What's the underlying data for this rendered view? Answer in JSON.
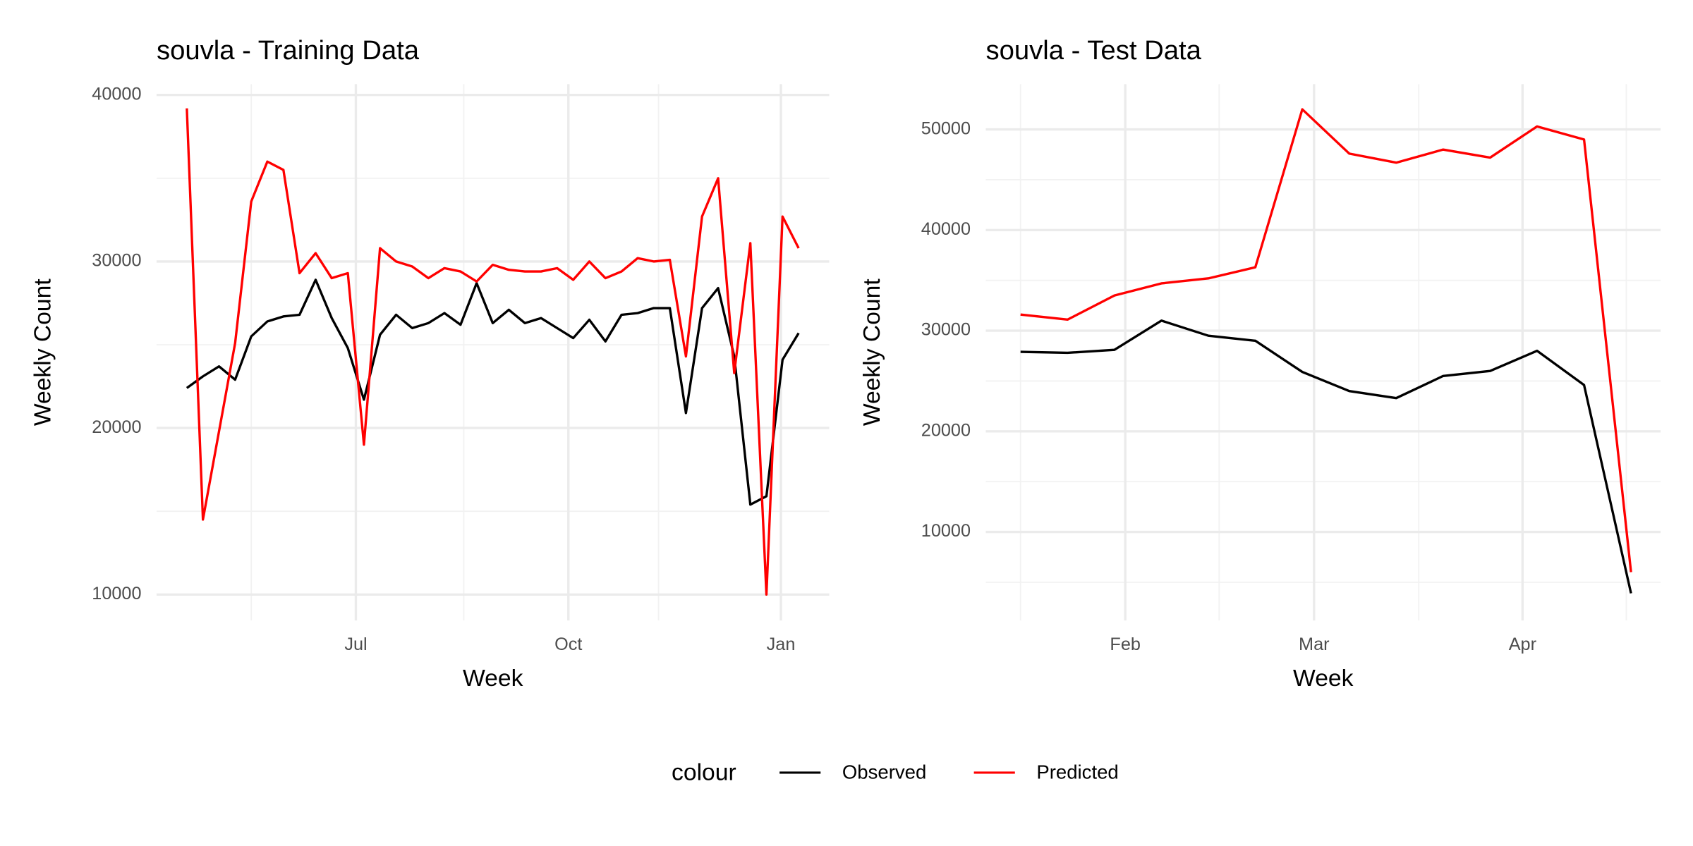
{
  "chart_data": [
    {
      "type": "line",
      "title": "souvla - Training Data",
      "xlabel": "Week",
      "ylabel": "Weekly Count",
      "x": [
        1,
        2,
        3,
        4,
        5,
        6,
        7,
        8,
        9,
        10,
        11,
        12,
        13,
        14,
        15,
        16,
        17,
        18,
        19,
        20,
        21,
        22,
        23,
        24,
        25,
        26,
        27,
        28,
        29,
        30,
        31,
        32,
        33,
        34,
        35,
        36,
        37,
        38,
        39
      ],
      "series": [
        {
          "name": "Observed",
          "color": "#000000",
          "values": [
            22400,
            23100,
            23700,
            22900,
            25500,
            26400,
            26700,
            26800,
            28900,
            26600,
            24800,
            21700,
            25600,
            26800,
            26000,
            26300,
            26900,
            26200,
            28700,
            26300,
            27100,
            26300,
            26600,
            26000,
            25400,
            26500,
            25200,
            26800,
            26900,
            27200,
            27200,
            20900,
            27200,
            28400,
            24300,
            15400,
            15900,
            24100,
            25700
          ]
        },
        {
          "name": "Predicted",
          "color": "#ff0000",
          "values": [
            39200,
            14500,
            19800,
            25100,
            33600,
            36000,
            35500,
            29300,
            30500,
            29000,
            29300,
            19000,
            30800,
            30000,
            29700,
            29000,
            29600,
            29400,
            28800,
            29800,
            29500,
            29400,
            29400,
            29600,
            28900,
            30000,
            29000,
            29400,
            30200,
            30000,
            30100,
            24300,
            32700,
            35000,
            23300,
            31100,
            10000,
            32700,
            30800
          ]
        }
      ],
      "xlim": [
        -0.88,
        40.9
      ],
      "xticks": [
        {
          "value": 11.5,
          "label": "Jul"
        },
        {
          "value": 24.7,
          "label": "Oct"
        },
        {
          "value": 37.9,
          "label": "Jan"
        }
      ],
      "xminorticks": [
        5.0,
        18.2,
        30.3
      ],
      "ylim": [
        8440,
        40650
      ],
      "yticks": [
        10000,
        20000,
        30000,
        40000
      ],
      "yminorticks": [
        15000,
        25000,
        35000
      ],
      "grid": true
    },
    {
      "type": "line",
      "title": "souvla - Test Data",
      "xlabel": "Week",
      "ylabel": "Weekly Count",
      "x": [
        1,
        2,
        3,
        4,
        5,
        6,
        7,
        8,
        9,
        10,
        11,
        12,
        13,
        14
      ],
      "series": [
        {
          "name": "Observed",
          "color": "#000000",
          "values": [
            27900,
            27800,
            28100,
            31000,
            29500,
            29000,
            25900,
            24000,
            23300,
            25500,
            26000,
            28000,
            24600,
            3900
          ]
        },
        {
          "name": "Predicted",
          "color": "#ff0000",
          "values": [
            31600,
            31100,
            33500,
            34700,
            35200,
            36300,
            52000,
            47600,
            46700,
            48000,
            47200,
            50300,
            49000,
            6000
          ]
        }
      ],
      "xlim": [
        0.26,
        14.63
      ],
      "xticks": [
        {
          "value": 3.23,
          "label": "Feb"
        },
        {
          "value": 7.25,
          "label": "Mar"
        },
        {
          "value": 11.69,
          "label": "Apr"
        }
      ],
      "xminorticks": [
        1.0,
        5.23,
        9.48,
        13.9
      ],
      "ylim": [
        1200,
        54500
      ],
      "yticks": [
        10000,
        20000,
        30000,
        40000,
        50000
      ],
      "yminorticks": [
        5000,
        15000,
        25000,
        35000,
        45000
      ],
      "grid": true
    }
  ],
  "legend": {
    "title": "colour"
  }
}
